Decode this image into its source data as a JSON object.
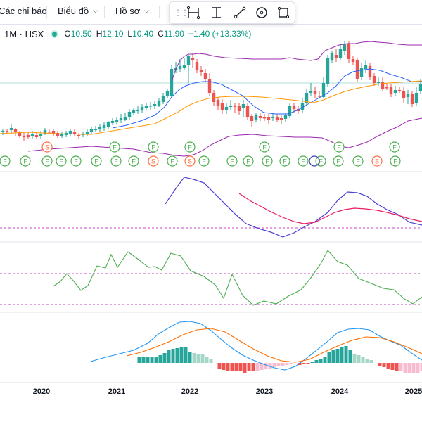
{
  "toolbar": {
    "indicators_label": "Các chỉ báo",
    "chart_type_label": "Biểu đồ",
    "profile_label": "Hồ sơ"
  },
  "drawing_tools": [
    "long-position-tool-icon",
    "price-range-tool-icon",
    "trend-line-tool-icon",
    "circle-tool-icon",
    "rectangle-tool-icon"
  ],
  "legend": {
    "interval": "1M",
    "exchange": "HSX",
    "symbol_text": "1M · HSX",
    "open_key": "O",
    "open": "10.50",
    "high_key": "H",
    "high": "12.10",
    "low_key": "L",
    "low": "10.40",
    "close_key": "C",
    "close": "11.90",
    "change": "+1.40 (+13.33%)"
  },
  "x_axis_labels": [
    "2020",
    "2021",
    "2022",
    "2023",
    "2024",
    "2025"
  ],
  "colors": {
    "up": "#26a69a",
    "down": "#ef5350",
    "bollinger": "#9c27b0",
    "ma_blue": "#2962ff",
    "ma_orange": "#ff9800",
    "event_green": "#4caf50",
    "event_orange": "#ff7043",
    "rsi_line": "#4caf50",
    "macd_line": "#2196f3",
    "signal_line": "#ff6d00",
    "dashed": "#c845c8"
  },
  "event_markers": {
    "row1": [
      "S",
      "F",
      "F",
      "F",
      "F",
      "F",
      "F"
    ],
    "row2": [
      "F",
      "F",
      "F",
      "F",
      "F",
      "F",
      "F",
      "F",
      "S",
      "F",
      "S",
      "F",
      "F",
      "F",
      "F",
      "F",
      "F",
      "F",
      "F",
      "F",
      "S",
      "F"
    ]
  }
}
